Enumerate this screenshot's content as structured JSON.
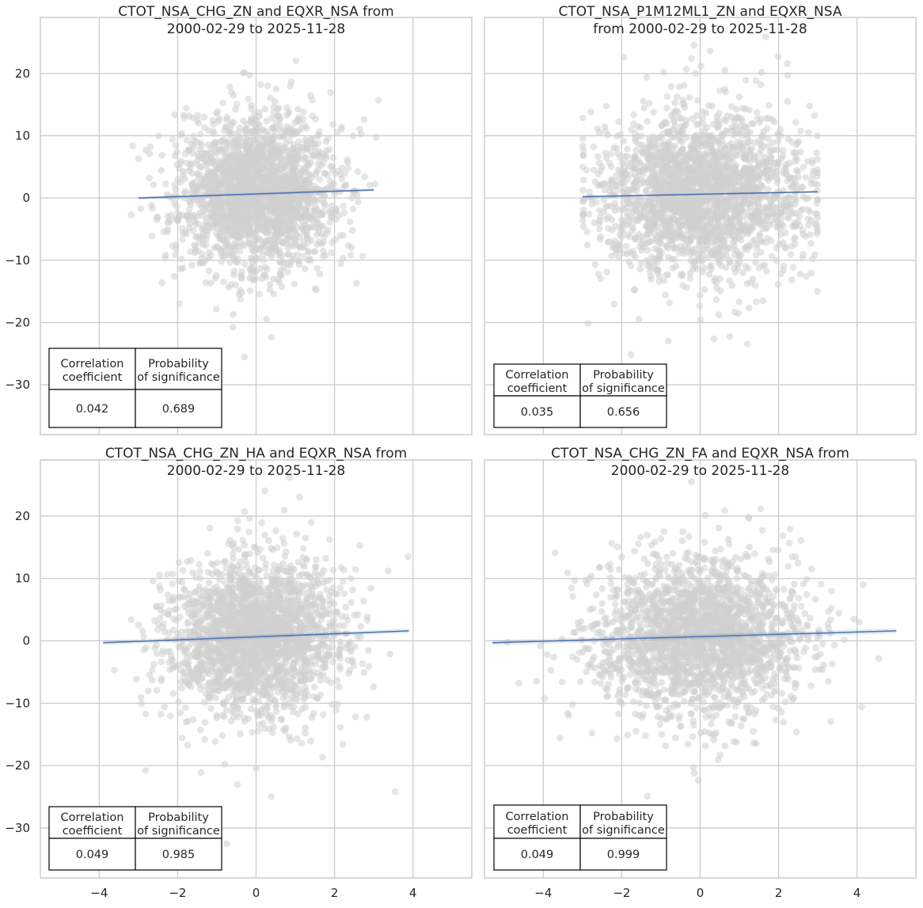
{
  "chart_data": [
    {
      "type": "scatter",
      "title_line1": "CTOT_NSA_CHG_ZN and EQXR_NSA from",
      "title_line2": "2000-02-29 to 2025-11-28",
      "xlabel": "",
      "ylabel": "",
      "xlim": [
        -5.5,
        5.5
      ],
      "ylim": [
        -38,
        29
      ],
      "xticks": [
        -4,
        -2,
        0,
        2,
        4
      ],
      "yticks": [
        -30,
        -20,
        -10,
        0,
        10,
        20
      ],
      "show_xticklabels": false,
      "show_yticklabels": true,
      "grid": true,
      "regression": {
        "x": [
          -3.0,
          3.0
        ],
        "y": [
          0.0,
          1.3
        ],
        "band": 0.25
      },
      "cloud": {
        "x_center": 0,
        "x_sd": 1.0,
        "x_min": -3.2,
        "x_max": 3.2,
        "y_sd": 6.0,
        "n": 2200,
        "clip_x": false
      },
      "stats_table": {
        "headers": [
          [
            "Correlation",
            "coefficient"
          ],
          [
            "Probability",
            "of significance"
          ]
        ],
        "values": [
          "0.042",
          "0.689"
        ],
        "position": "lower-left"
      }
    },
    {
      "type": "scatter",
      "title_line1": "CTOT_NSA_P1M12ML1_ZN and EQXR_NSA",
      "title_line2": "from 2000-02-29 to 2025-11-28",
      "xlabel": "",
      "ylabel": "",
      "xlim": [
        -5.5,
        5.5
      ],
      "ylim": [
        -38,
        29
      ],
      "xticks": [
        -4,
        -2,
        0,
        2,
        4
      ],
      "yticks": [
        -30,
        -20,
        -10,
        0,
        10,
        20
      ],
      "show_xticklabels": false,
      "show_yticklabels": false,
      "grid": true,
      "regression": {
        "x": [
          -3.0,
          3.0
        ],
        "y": [
          0.2,
          1.0
        ],
        "band": 0.2
      },
      "cloud": {
        "x_center": 0,
        "x_sd": 1.3,
        "x_min": -3.0,
        "x_max": 3.0,
        "y_sd": 6.0,
        "n": 2400,
        "clip_x": true
      },
      "stats_table": {
        "headers": [
          [
            "Correlation",
            "coefficient"
          ],
          [
            "Probability",
            "of significance"
          ]
        ],
        "values": [
          "0.035",
          "0.656"
        ],
        "position": "lower-left"
      }
    },
    {
      "type": "scatter",
      "title_line1": "CTOT_NSA_CHG_ZN_HA and EQXR_NSA from",
      "title_line2": "2000-02-29 to 2025-11-28",
      "xlabel": "",
      "ylabel": "",
      "xlim": [
        -5.5,
        5.5
      ],
      "ylim": [
        -38,
        29
      ],
      "xticks": [
        -4,
        -2,
        0,
        2,
        4
      ],
      "yticks": [
        -30,
        -20,
        -10,
        0,
        10,
        20
      ],
      "show_xticklabels": true,
      "show_yticklabels": true,
      "grid": true,
      "regression": {
        "x": [
          -3.9,
          3.9
        ],
        "y": [
          -0.3,
          1.6
        ],
        "band": 0.35
      },
      "cloud": {
        "x_center": 0,
        "x_sd": 1.1,
        "x_min": -4.0,
        "x_max": 3.9,
        "y_sd": 6.0,
        "n": 2300,
        "clip_x": false
      },
      "stats_table": {
        "headers": [
          [
            "Correlation",
            "coefficient"
          ],
          [
            "Probability",
            "of significance"
          ]
        ],
        "values": [
          "0.049",
          "0.985"
        ],
        "position": "lower-left"
      }
    },
    {
      "type": "scatter",
      "title_line1": "CTOT_NSA_CHG_ZN_FA and EQXR_NSA from",
      "title_line2": "2000-02-29 to 2025-11-28",
      "xlabel": "",
      "ylabel": "",
      "xlim": [
        -5.5,
        5.5
      ],
      "ylim": [
        -38,
        29
      ],
      "xticks": [
        -4,
        -2,
        0,
        2,
        4
      ],
      "yticks": [
        -30,
        -20,
        -10,
        0,
        10,
        20
      ],
      "show_xticklabels": true,
      "show_yticklabels": false,
      "grid": true,
      "regression": {
        "x": [
          -5.3,
          5.0
        ],
        "y": [
          -0.3,
          1.6
        ],
        "band": 0.4
      },
      "cloud": {
        "x_center": 0,
        "x_sd": 1.35,
        "x_min": -5.3,
        "x_max": 5.0,
        "y_sd": 6.0,
        "n": 2300,
        "clip_x": false
      },
      "stats_table": {
        "headers": [
          [
            "Correlation",
            "coefficient"
          ],
          [
            "Probability",
            "of significance"
          ]
        ],
        "values": [
          "0.049",
          "0.999"
        ],
        "position": "lower-left"
      }
    }
  ]
}
